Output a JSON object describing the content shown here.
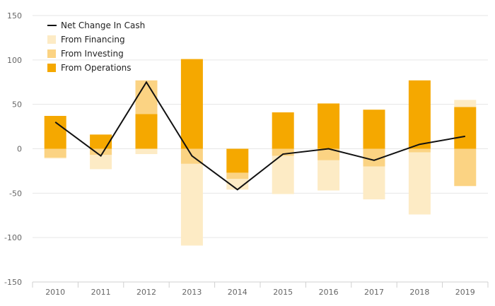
{
  "chart_data": {
    "type": "bar",
    "subtype": "stacked-bar-with-line",
    "categories": [
      "2010",
      "2011",
      "2012",
      "2013",
      "2014",
      "2015",
      "2016",
      "2017",
      "2018",
      "2019"
    ],
    "series": [
      {
        "name": "From Operations",
        "kind": "bar",
        "color": "#F5A800",
        "values": [
          37,
          16,
          39,
          101,
          -27,
          41,
          51,
          44,
          77,
          47
        ]
      },
      {
        "name": "From Investing",
        "kind": "bar",
        "color": "#FBD383",
        "values": [
          -10,
          -7,
          38,
          -17,
          -7,
          -8,
          -13,
          -20,
          -4,
          -42
        ]
      },
      {
        "name": "From Financing",
        "kind": "bar",
        "color": "#FDEBC5",
        "values": [
          -1,
          -16,
          -6,
          -92,
          -12,
          -43,
          -34,
          -37,
          -70,
          8
        ]
      },
      {
        "name": "Net Change In Cash",
        "kind": "line",
        "color": "#111111",
        "values": [
          30,
          -8,
          75,
          -8,
          -46,
          -6,
          0,
          -13,
          5,
          14
        ]
      }
    ],
    "y_axis": {
      "min": -150,
      "max": 150,
      "ticks": [
        -150,
        -100,
        -50,
        0,
        50,
        100,
        150
      ]
    },
    "xlabel": "",
    "ylabel": "",
    "legend": {
      "placement": "top-left",
      "order": [
        "Net Change In Cash",
        "From Financing",
        "From Investing",
        "From Operations"
      ]
    },
    "grid": true
  }
}
